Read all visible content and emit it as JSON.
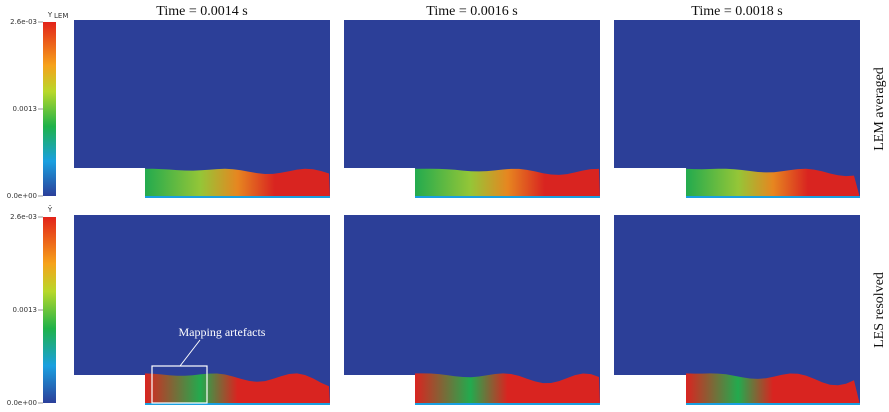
{
  "columns": [
    "Time = 0.0014 s",
    "Time = 0.0016 s",
    "Time = 0.0018 s"
  ],
  "rows": [
    {
      "label": "LEM averaged",
      "colorbar": {
        "title": "Y",
        "title_subscript": "LEM",
        "ticks": [
          "2.6e-03",
          "0.0013",
          "0.0e+00"
        ]
      }
    },
    {
      "label": "LES resolved",
      "colorbar": {
        "title": "Ỹ",
        "ticks": [
          "2.6e-03",
          "0.0013",
          "0.0e+00"
        ]
      }
    }
  ],
  "annotation": "Mapping artefacts"
}
